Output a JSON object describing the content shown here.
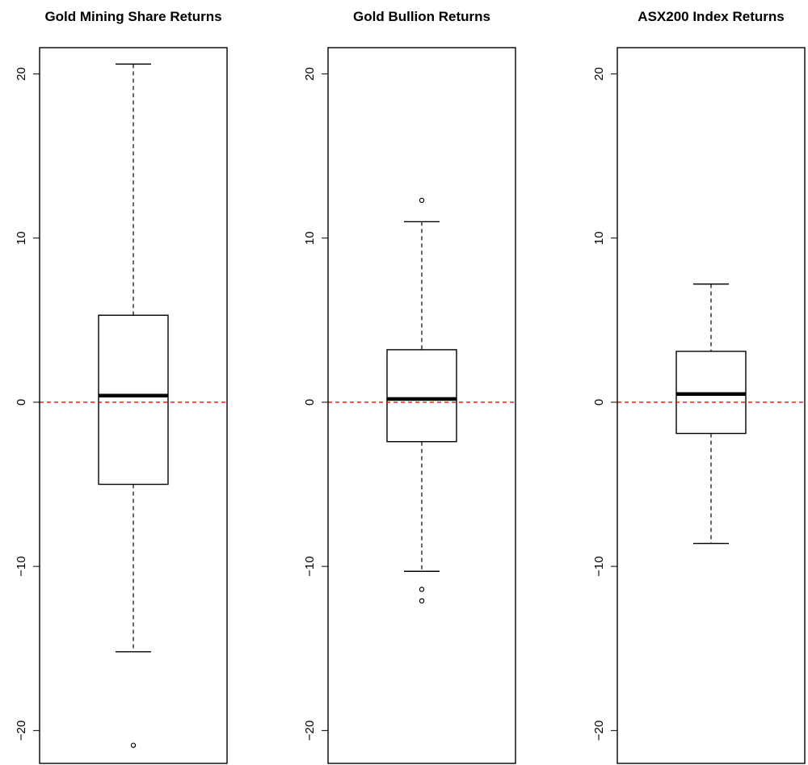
{
  "chart_data": [
    {
      "type": "box",
      "title": "Gold Mining Share Returns",
      "ylim": [
        -22,
        21.6
      ],
      "yticks": [
        -20,
        -10,
        0,
        10,
        20
      ],
      "ytick_labels": [
        "−20",
        "−10",
        "0",
        "10",
        "20"
      ],
      "stats": {
        "whisker_low": -15.2,
        "q1": -5.0,
        "median": 0.4,
        "q3": 5.3,
        "whisker_high": 20.6
      },
      "outliers": [
        -20.9
      ],
      "reference_line": {
        "y": 0,
        "color": "#ff0000",
        "style": "dashed"
      }
    },
    {
      "type": "box",
      "title": "Gold Bullion Returns",
      "ylim": [
        -22,
        21.6
      ],
      "yticks": [
        -20,
        -10,
        0,
        10,
        20
      ],
      "ytick_labels": [
        "−20",
        "−10",
        "0",
        "10",
        "20"
      ],
      "stats": {
        "whisker_low": -10.3,
        "q1": -2.4,
        "median": 0.2,
        "q3": 3.2,
        "whisker_high": 11.0
      },
      "outliers": [
        12.3,
        -11.4,
        -12.1
      ],
      "reference_line": {
        "y": 0,
        "color": "#ff0000",
        "style": "dashed"
      }
    },
    {
      "type": "box",
      "title": "ASX200 Index Returns",
      "ylim": [
        -22,
        21.6
      ],
      "yticks": [
        -20,
        -10,
        0,
        10,
        20
      ],
      "ytick_labels": [
        "−20",
        "−10",
        "0",
        "10",
        "20"
      ],
      "stats": {
        "whisker_low": -8.6,
        "q1": -1.9,
        "median": 0.5,
        "q3": 3.1,
        "whisker_high": 7.2
      },
      "outliers": [],
      "reference_line": {
        "y": 0,
        "color": "#ff0000",
        "style": "dashed"
      }
    }
  ],
  "colors": {
    "box_stroke": "#000000",
    "median": "#000000",
    "reference": "#ff0000"
  }
}
